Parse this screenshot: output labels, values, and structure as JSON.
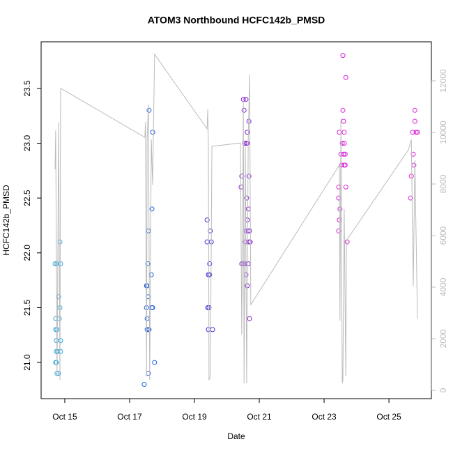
{
  "chart_data": {
    "type": "scatter",
    "title": "ATOM3 Northbound HCFC142b_PMSD",
    "x_label": "Date",
    "y_label": "HCFC142b_PMSD",
    "xlim": [
      14.27,
      26.31
    ],
    "xticks": [
      {
        "value": 15,
        "label": "Oct 15"
      },
      {
        "value": 17,
        "label": "Oct 17"
      },
      {
        "value": 19,
        "label": "Oct 19"
      },
      {
        "value": 21,
        "label": "Oct 21"
      },
      {
        "value": 23,
        "label": "Oct 23"
      },
      {
        "value": 25,
        "label": "Oct 25"
      }
    ],
    "ylim": [
      20.67,
      23.925
    ],
    "yticks": [
      {
        "value": 21,
        "label": "21.0"
      },
      21.5,
      {
        "value": 22,
        "label": "22.0"
      },
      22.5,
      {
        "value": 23,
        "label": "23.0"
      },
      23.5
    ],
    "y2lim": [
      -324,
      13514
    ],
    "y2ticks": [
      0,
      2000,
      4000,
      6000,
      8000,
      10000,
      12000
    ],
    "y2_color": "#bbbbbb",
    "series": [
      {
        "color": "#29a8e0",
        "x": [
          14.7,
          14.76,
          14.87,
          14.72,
          14.72,
          14.76,
          14.74,
          14.74,
          14.78,
          14.72,
          14.74,
          14.76,
          14.81,
          14.85,
          14.81,
          14.85,
          14.83,
          14.87,
          14.87
        ],
        "values": [
          21.9,
          21.9,
          21.9,
          21.4,
          21.3,
          21.3,
          21.2,
          21.1,
          21.1,
          21.0,
          21.0,
          20.9,
          20.9,
          22.1,
          21.6,
          21.5,
          21.4,
          21.2,
          21.1
        ]
      },
      {
        "color": "#1f5fe0",
        "x": [
          17.45,
          17.6,
          17.71,
          17.69,
          17.58,
          17.56,
          17.67,
          17.52,
          17.54,
          17.58,
          17.52,
          17.69,
          17.71,
          17.54,
          17.54,
          17.58,
          17.6,
          17.77,
          17.58
        ],
        "values": [
          20.8,
          23.3,
          23.1,
          22.4,
          22.2,
          21.9,
          21.8,
          21.7,
          21.7,
          21.6,
          21.5,
          21.5,
          21.5,
          21.4,
          21.3,
          21.3,
          21.3,
          21.0,
          20.9
        ]
      },
      {
        "color": "#3a2fd8",
        "x": [
          19.39,
          19.49,
          19.39,
          19.52,
          19.47,
          19.43,
          19.47,
          19.41,
          19.45,
          19.43,
          19.56
        ],
        "values": [
          22.3,
          22.2,
          22.1,
          22.1,
          21.9,
          21.8,
          21.8,
          21.5,
          21.5,
          21.3,
          21.3
        ]
      },
      {
        "color": "#8a1fd8",
        "x": [
          20.51,
          20.59,
          20.53,
          20.68,
          20.63,
          20.55,
          20.61,
          20.63,
          20.46,
          20.68,
          20.44,
          20.61,
          20.66,
          20.63,
          20.59,
          20.66,
          20.7,
          20.57,
          20.68,
          20.72,
          20.46,
          20.51,
          20.57,
          20.66,
          20.59,
          20.63,
          20.7
        ],
        "values": [
          23.4,
          23.4,
          23.3,
          23.2,
          23.1,
          23.0,
          23.0,
          23.0,
          22.7,
          22.7,
          22.6,
          22.5,
          22.4,
          22.3,
          22.2,
          22.2,
          22.2,
          22.1,
          22.1,
          22.1,
          21.9,
          21.9,
          21.9,
          21.9,
          21.8,
          21.7,
          21.4
        ]
      },
      {
        "color": "#d81fd8",
        "x": [
          23.58,
          23.67,
          23.58,
          23.6,
          23.47,
          23.62,
          23.56,
          23.62,
          23.6,
          23.52,
          23.65,
          23.54,
          23.62,
          23.65,
          23.45,
          23.67,
          23.45,
          23.49,
          23.47,
          23.45,
          23.71
        ],
        "values": [
          23.8,
          23.6,
          23.3,
          23.2,
          23.1,
          23.1,
          23.0,
          23.0,
          22.9,
          22.9,
          22.9,
          22.8,
          22.8,
          22.8,
          22.6,
          22.6,
          22.5,
          22.4,
          22.3,
          22.2,
          22.1
        ]
      },
      {
        "color": "#e01fe0",
        "x": [
          25.8,
          25.8,
          25.73,
          25.84,
          25.88,
          25.75,
          25.77,
          25.69,
          25.67
        ],
        "values": [
          23.3,
          23.2,
          23.1,
          23.1,
          23.1,
          22.9,
          22.8,
          22.7,
          22.5
        ]
      },
      {
        "color": "#bbbbbb",
        "axis": "y2",
        "x": [
          14.7,
          14.72,
          14.76,
          14.78,
          14.81,
          14.85,
          14.87,
          14.89,
          17.47,
          17.49,
          17.52,
          17.54,
          17.58,
          17.62,
          17.67,
          17.71,
          17.77,
          19.39,
          19.41,
          19.43,
          19.45,
          19.49,
          19.54,
          20.42,
          20.46,
          20.51,
          20.53,
          20.57,
          20.61,
          20.66,
          20.7,
          20.74,
          23.47,
          23.49,
          23.52,
          23.56,
          23.58,
          23.62,
          23.67,
          23.69,
          25.6,
          25.69,
          25.75,
          25.8,
          25.88
        ],
        "values": [
          8570,
          10080,
          540,
          3920,
          10400,
          400,
          11700,
          11700,
          9810,
          10400,
          540,
          9730,
          11080,
          400,
          9730,
          7970,
          13030,
          10140,
          10890,
          9460,
          400,
          540,
          9460,
          9590,
          2160,
          11220,
          270,
          9460,
          270,
          9730,
          12240,
          3320,
          8730,
          2700,
          10540,
          270,
          400,
          7030,
          540,
          5810,
          9320,
          9730,
          4050,
          8920,
          2780
        ]
      }
    ]
  }
}
